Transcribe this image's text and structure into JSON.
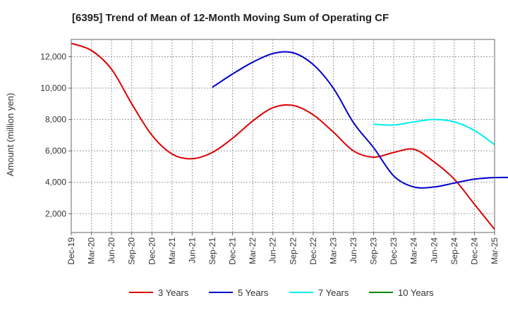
{
  "chart_data": {
    "type": "line",
    "title": "[6395]  Trend of Mean of 12-Month Moving Sum of Operating CF",
    "xlabel": "",
    "ylabel": "Amount (million yen)",
    "x_ticks": [
      "Dec-19",
      "Mar-20",
      "Jun-20",
      "Sep-20",
      "Dec-20",
      "Mar-21",
      "Jun-21",
      "Sep-21",
      "Dec-21",
      "Mar-22",
      "Jun-22",
      "Sep-22",
      "Dec-22",
      "Mar-23",
      "Jun-23",
      "Sep-23",
      "Dec-23",
      "Mar-24",
      "Jun-24",
      "Sep-24",
      "Dec-24",
      "Mar-25"
    ],
    "y_ticks": [
      2000,
      4000,
      6000,
      8000,
      10000,
      12000
    ],
    "y_tick_labels": [
      "2,000",
      "4,000",
      "6,000",
      "8,000",
      "10,000",
      "12,000"
    ],
    "ylim": [
      800,
      13100
    ],
    "grid": true,
    "legend_position": "bottom",
    "series": [
      {
        "name": "3 Years",
        "color": "#dd0000",
        "points": [
          [
            0,
            12850
          ],
          [
            1,
            12400
          ],
          [
            2,
            11200
          ],
          [
            3,
            9000
          ],
          [
            4,
            7000
          ],
          [
            5,
            5800
          ],
          [
            6,
            5500
          ],
          [
            7,
            5900
          ],
          [
            8,
            6800
          ],
          [
            9,
            7900
          ],
          [
            10,
            8750
          ],
          [
            11,
            8900
          ],
          [
            12,
            8300
          ],
          [
            13,
            7200
          ],
          [
            14,
            6000
          ],
          [
            15,
            5600
          ],
          [
            16,
            5900
          ],
          [
            17,
            6100
          ],
          [
            18,
            5300
          ],
          [
            19,
            4200
          ],
          [
            20,
            2600
          ],
          [
            21,
            1000
          ]
        ]
      },
      {
        "name": "5 Years",
        "color": "#0000cc",
        "points": [
          [
            0,
            10050
          ],
          [
            1,
            10900
          ],
          [
            2,
            11650
          ],
          [
            3,
            12200
          ],
          [
            4,
            12250
          ],
          [
            5,
            11500
          ],
          [
            6,
            10000
          ],
          [
            7,
            7800
          ],
          [
            8,
            6200
          ],
          [
            9,
            4400
          ],
          [
            10,
            3700
          ],
          [
            11,
            3700
          ],
          [
            12,
            3950
          ],
          [
            13,
            4200
          ],
          [
            14,
            4300
          ],
          [
            15,
            4300
          ]
        ]
      },
      {
        "name": "7 Years",
        "color": "#00eeee",
        "points": [
          [
            0,
            7700
          ],
          [
            1,
            7650
          ],
          [
            2,
            7850
          ],
          [
            3,
            8000
          ],
          [
            4,
            7850
          ],
          [
            5,
            7300
          ],
          [
            6,
            6400
          ]
        ]
      },
      {
        "name": "10 Years",
        "color": "#008800",
        "points": []
      }
    ]
  }
}
